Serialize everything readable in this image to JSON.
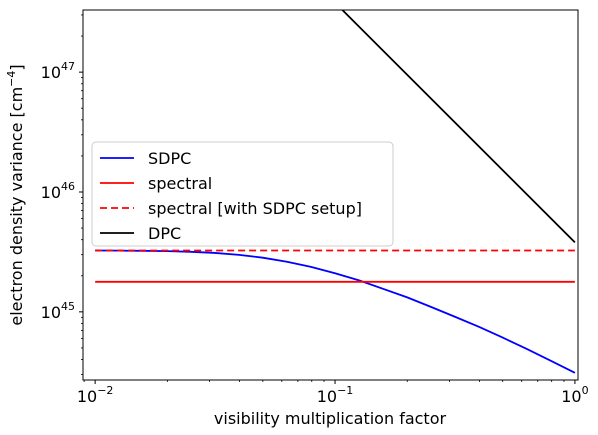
{
  "chart_data": {
    "type": "line",
    "xscale": "log",
    "yscale": "log",
    "xlabel": "visibility multiplication factor",
    "ylabel": "electron density variance [cm",
    "ylabel_sup": "−4",
    "ylabel_suffix": "]",
    "xlim": [
      0.0089,
      1.03
    ],
    "ylim": [
      2.7e+44,
      3.3e+47
    ],
    "grid": false,
    "legend_position": "center-left",
    "x_ticks": [
      {
        "value": 0.01,
        "base": "10",
        "exp": "−2"
      },
      {
        "value": 0.1,
        "base": "10",
        "exp": "−1"
      },
      {
        "value": 1,
        "base": "10",
        "exp": "0"
      }
    ],
    "y_ticks": [
      {
        "value": 1e+45,
        "base": "10",
        "exp": "45"
      },
      {
        "value": 1e+46,
        "base": "10",
        "exp": "46"
      },
      {
        "value": 1e+47,
        "base": "10",
        "exp": "47"
      }
    ],
    "series": [
      {
        "name": "SDPC",
        "color": "#0000ff",
        "dash": "solid",
        "x": [
          0.01,
          0.0126,
          0.0158,
          0.02,
          0.0251,
          0.0316,
          0.0398,
          0.05,
          0.063,
          0.0794,
          0.1,
          0.126,
          0.158,
          0.2,
          0.251,
          0.316,
          0.398,
          0.5,
          0.63,
          0.794,
          1.0
        ],
        "y": [
          3.25e+45,
          3.24e+45,
          3.23e+45,
          3.21e+45,
          3.17e+45,
          3.1e+45,
          2.99e+45,
          2.83e+45,
          2.62e+45,
          2.37e+45,
          2.1e+45,
          1.83e+45,
          1.56e+45,
          1.32e+45,
          1.1e+45,
          9.1e+44,
          7.5e+44,
          6.1e+44,
          4.9e+44,
          3.9e+44,
          3.1e+44
        ]
      },
      {
        "name": "spectral",
        "color": "#ff0000",
        "dash": "solid",
        "x": [
          0.01,
          1.0
        ],
        "y": [
          1.78e+45,
          1.78e+45
        ]
      },
      {
        "name": "spectral [with SDPC setup]",
        "color": "#ff0000",
        "dash": "dashed",
        "x": [
          0.01,
          1.0
        ],
        "y": [
          3.25e+45,
          3.25e+45
        ]
      },
      {
        "name": "DPC",
        "color": "#000000",
        "dash": "solid",
        "x": [
          0.01,
          0.1,
          1.0
        ],
        "y": [
          3.8e+48,
          3.8e+47,
          3.8e+45
        ]
      }
    ]
  }
}
